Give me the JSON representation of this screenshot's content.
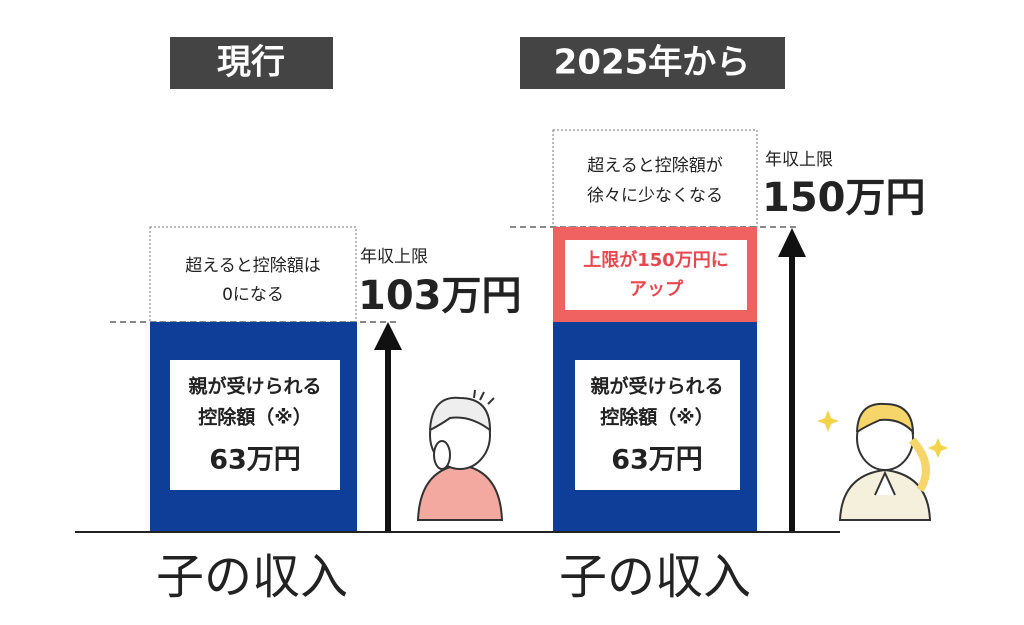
{
  "headers": {
    "current": "現行",
    "from_2025": "2025年から"
  },
  "current": {
    "note": [
      "超えると控除額は",
      "0になる"
    ],
    "limit_label": "年収上限",
    "limit_value": "103万円",
    "deduction": [
      "親が受けられる",
      "控除額（※）"
    ],
    "deduction_amount": "63万円",
    "axis_label": "子の収入"
  },
  "future": {
    "note": [
      "超えると控除額が",
      "徐々に少なくなる"
    ],
    "raise": [
      "上限が150万円に",
      "アップ"
    ],
    "limit_label": "年収上限",
    "limit_value": "150万円",
    "deduction": [
      "親が受けられる",
      "控除額（※）"
    ],
    "deduction_amount": "63万円",
    "axis_label": "子の収入"
  }
}
